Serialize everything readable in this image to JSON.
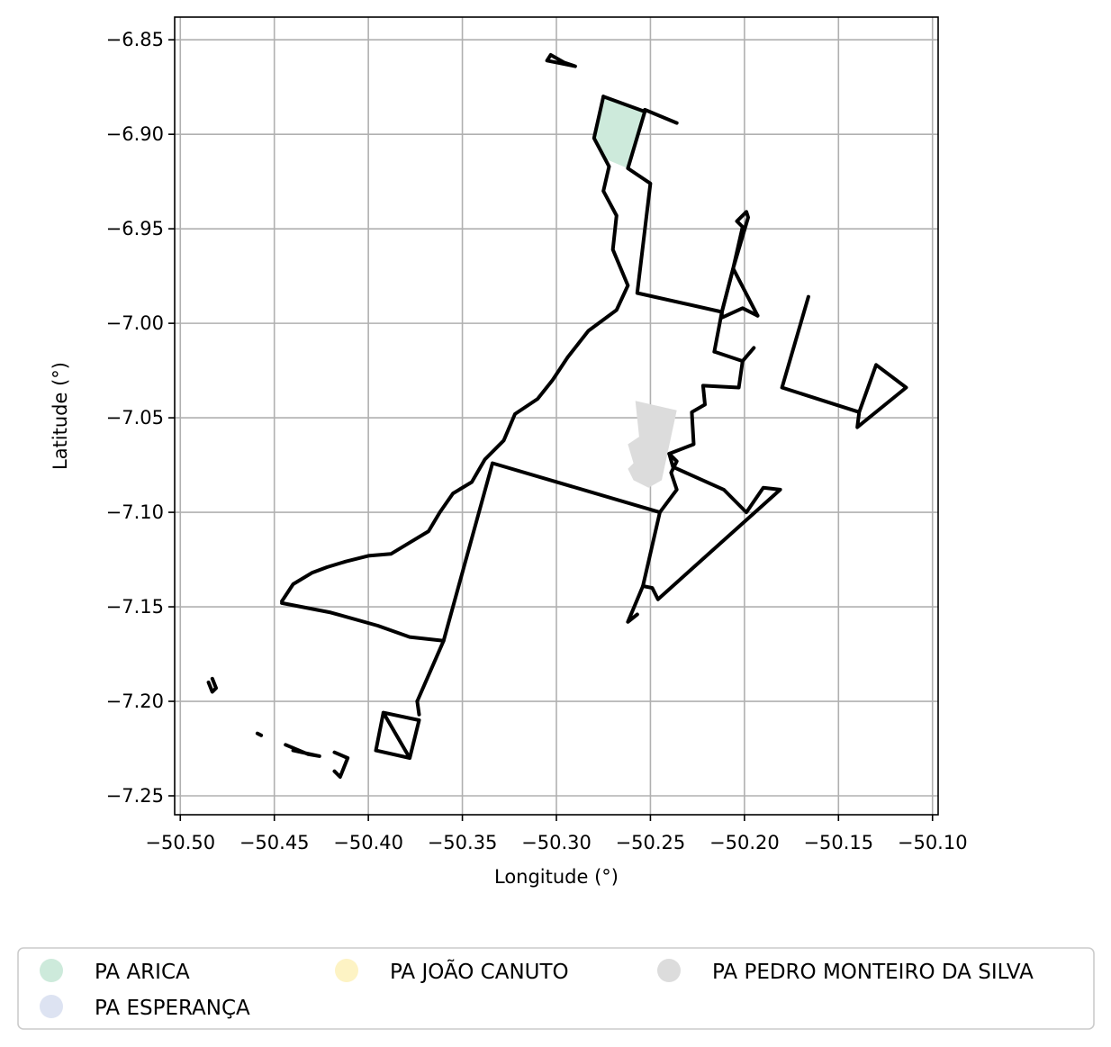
{
  "chart_data": {
    "type": "map",
    "title": "",
    "xlabel": "Longitude (°)",
    "ylabel": "Latitude (°)",
    "xlim": [
      -50.503,
      -50.097
    ],
    "ylim": [
      -7.26,
      -6.838
    ],
    "grid": true,
    "x_ticks": [
      -50.5,
      -50.45,
      -50.4,
      -50.35,
      -50.3,
      -50.25,
      -50.2,
      -50.15,
      -50.1
    ],
    "x_tick_labels": [
      "−50.50",
      "−50.45",
      "−50.40",
      "−50.35",
      "−50.30",
      "−50.25",
      "−50.20",
      "−50.15",
      "−50.10"
    ],
    "y_ticks": [
      -6.85,
      -6.9,
      -6.95,
      -7.0,
      -7.05,
      -7.1,
      -7.15,
      -7.2,
      -7.25
    ],
    "y_tick_labels": [
      "−6.85",
      "−6.90",
      "−6.95",
      "−7.00",
      "−7.05",
      "−7.10",
      "−7.15",
      "−7.20",
      "−7.25"
    ],
    "legend": {
      "placement": "below",
      "entries": [
        {
          "label": "PA ARICA",
          "color": "#cdeadb"
        },
        {
          "label": "PA ESPERANÇA",
          "color": "#dde3f2"
        },
        {
          "label": "PA JOÃO CANUTO",
          "color": "#fdf3c4"
        },
        {
          "label": "PA PEDRO MONTEIRO DA SILVA",
          "color": "#dcdcdc"
        }
      ]
    },
    "filled_areas": [
      {
        "name": "PA ARICA",
        "color": "#cdeadb",
        "coords": [
          [
            -50.275,
            -6.88
          ],
          [
            -50.253,
            -6.887
          ],
          [
            -50.262,
            -6.918
          ],
          [
            -50.274,
            -6.913
          ],
          [
            -50.28,
            -6.902
          ],
          [
            -50.278,
            -6.89
          ]
        ]
      },
      {
        "name": "PA PEDRO MONTEIRO DA SILVA",
        "color": "#dcdcdc",
        "coords": [
          [
            -50.258,
            -7.041
          ],
          [
            -50.236,
            -7.046
          ],
          [
            -50.244,
            -7.083
          ],
          [
            -50.251,
            -7.087
          ],
          [
            -50.259,
            -7.083
          ],
          [
            -50.262,
            -7.077
          ],
          [
            -50.259,
            -7.074
          ],
          [
            -50.262,
            -7.064
          ],
          [
            -50.256,
            -7.06
          ]
        ]
      }
    ],
    "boundaries": [
      {
        "name": "main-west",
        "coords": [
          [
            -50.275,
            -6.88
          ],
          [
            -50.28,
            -6.902
          ],
          [
            -50.272,
            -6.917
          ],
          [
            -50.275,
            -6.93
          ],
          [
            -50.268,
            -6.943
          ],
          [
            -50.27,
            -6.961
          ],
          [
            -50.262,
            -6.98
          ],
          [
            -50.268,
            -6.993
          ],
          [
            -50.283,
            -7.004
          ],
          [
            -50.294,
            -7.018
          ],
          [
            -50.302,
            -7.03
          ],
          [
            -50.31,
            -7.04
          ],
          [
            -50.322,
            -7.048
          ],
          [
            -50.328,
            -7.062
          ],
          [
            -50.338,
            -7.072
          ],
          [
            -50.345,
            -7.084
          ],
          [
            -50.355,
            -7.09
          ],
          [
            -50.362,
            -7.1
          ],
          [
            -50.368,
            -7.11
          ],
          [
            -50.378,
            -7.116
          ],
          [
            -50.388,
            -7.122
          ],
          [
            -50.4,
            -7.123
          ],
          [
            -50.412,
            -7.126
          ],
          [
            -50.422,
            -7.129
          ],
          [
            -50.43,
            -7.132
          ],
          [
            -50.44,
            -7.138
          ],
          [
            -50.446,
            -7.147
          ]
        ]
      },
      {
        "name": "main-south",
        "coords": [
          [
            -50.446,
            -7.148
          ],
          [
            -50.42,
            -7.153
          ],
          [
            -50.395,
            -7.16
          ],
          [
            -50.378,
            -7.166
          ],
          [
            -50.36,
            -7.168
          ]
        ]
      },
      {
        "name": "main-east",
        "coords": [
          [
            -50.275,
            -6.88
          ],
          [
            -50.253,
            -6.888
          ],
          [
            -50.262,
            -6.918
          ],
          [
            -50.25,
            -6.926
          ],
          [
            -50.257,
            -6.984
          ],
          [
            -50.212,
            -6.994
          ],
          [
            -50.206,
            -6.971
          ],
          [
            -50.193,
            -6.996
          ]
        ]
      },
      {
        "name": "diag-a",
        "coords": [
          [
            -50.212,
            -6.994
          ],
          [
            -50.212,
            -6.997
          ],
          [
            -50.201,
            -6.992
          ],
          [
            -50.193,
            -6.996
          ]
        ]
      },
      {
        "name": "diag-b",
        "coords": [
          [
            -50.216,
            -7.015
          ],
          [
            -50.212,
            -6.994
          ],
          [
            -50.206,
            -6.971
          ],
          [
            -50.198,
            -6.944
          ],
          [
            -50.199,
            -6.941
          ],
          [
            -50.204,
            -6.946
          ],
          [
            -50.201,
            -6.949
          ],
          [
            -50.206,
            -6.971
          ]
        ]
      },
      {
        "name": "diag-c",
        "coords": [
          [
            -50.216,
            -7.015
          ],
          [
            -50.201,
            -7.02
          ],
          [
            -50.195,
            -7.013
          ]
        ]
      },
      {
        "name": "diag-d",
        "coords": [
          [
            -50.201,
            -7.02
          ],
          [
            -50.203,
            -7.034
          ],
          [
            -50.222,
            -7.033
          ],
          [
            -50.221,
            -7.043
          ],
          [
            -50.228,
            -7.047
          ],
          [
            -50.227,
            -7.064
          ],
          [
            -50.24,
            -7.069
          ],
          [
            -50.238,
            -7.076
          ],
          [
            -50.211,
            -7.088
          ],
          [
            -50.199,
            -7.1
          ],
          [
            -50.19,
            -7.087
          ],
          [
            -50.181,
            -7.088
          ],
          [
            -50.246,
            -7.146
          ],
          [
            -50.249,
            -7.14
          ],
          [
            -50.254,
            -7.139
          ],
          [
            -50.262,
            -7.158
          ],
          [
            -50.257,
            -7.154
          ]
        ]
      },
      {
        "name": "diag-e",
        "coords": [
          [
            -50.254,
            -7.139
          ],
          [
            -50.245,
            -7.1
          ],
          [
            -50.236,
            -7.088
          ],
          [
            -50.239,
            -7.079
          ],
          [
            -50.236,
            -7.073
          ],
          [
            -50.24,
            -7.069
          ]
        ]
      },
      {
        "name": "main-center",
        "coords": [
          [
            -50.245,
            -7.1
          ],
          [
            -50.334,
            -7.074
          ],
          [
            -50.36,
            -7.168
          ],
          [
            -50.374,
            -7.2
          ]
        ]
      },
      {
        "name": "east-spur",
        "coords": [
          [
            -50.166,
            -6.986
          ],
          [
            -50.18,
            -7.034
          ],
          [
            -50.139,
            -7.047
          ],
          [
            -50.13,
            -7.022
          ],
          [
            -50.114,
            -7.034
          ],
          [
            -50.14,
            -7.055
          ],
          [
            -50.139,
            -7.047
          ]
        ]
      },
      {
        "name": "north-island",
        "coords": [
          [
            -50.303,
            -6.858
          ],
          [
            -50.296,
            -6.862
          ],
          [
            -50.29,
            -6.864
          ],
          [
            -50.305,
            -6.861
          ],
          [
            -50.303,
            -6.858
          ]
        ]
      },
      {
        "name": "north-spur",
        "coords": [
          [
            -50.253,
            -6.887
          ],
          [
            -50.236,
            -6.894
          ]
        ]
      },
      {
        "name": "south-square",
        "coords": [
          [
            -50.392,
            -7.206
          ],
          [
            -50.378,
            -7.23
          ],
          [
            -50.373,
            -7.21
          ],
          [
            -50.392,
            -7.206
          ],
          [
            -50.396,
            -7.226
          ],
          [
            -50.378,
            -7.23
          ]
        ]
      },
      {
        "name": "south-spur",
        "coords": [
          [
            -50.373,
            -7.207
          ],
          [
            -50.374,
            -7.2
          ]
        ]
      },
      {
        "name": "west-island-a",
        "coords": [
          [
            -50.483,
            -7.188
          ],
          [
            -50.481,
            -7.193
          ],
          [
            -50.483,
            -7.195
          ],
          [
            -50.485,
            -7.19
          ]
        ]
      },
      {
        "name": "west-island-b",
        "coords": [
          [
            -50.459,
            -7.217
          ],
          [
            -50.457,
            -7.218
          ]
        ]
      },
      {
        "name": "west-island-c",
        "coords": [
          [
            -50.444,
            -7.223
          ],
          [
            -50.432,
            -7.228
          ],
          [
            -50.426,
            -7.229
          ],
          [
            -50.44,
            -7.226
          ]
        ]
      },
      {
        "name": "west-island-d",
        "coords": [
          [
            -50.418,
            -7.227
          ],
          [
            -50.411,
            -7.23
          ],
          [
            -50.415,
            -7.24
          ],
          [
            -50.418,
            -7.237
          ]
        ]
      }
    ]
  }
}
